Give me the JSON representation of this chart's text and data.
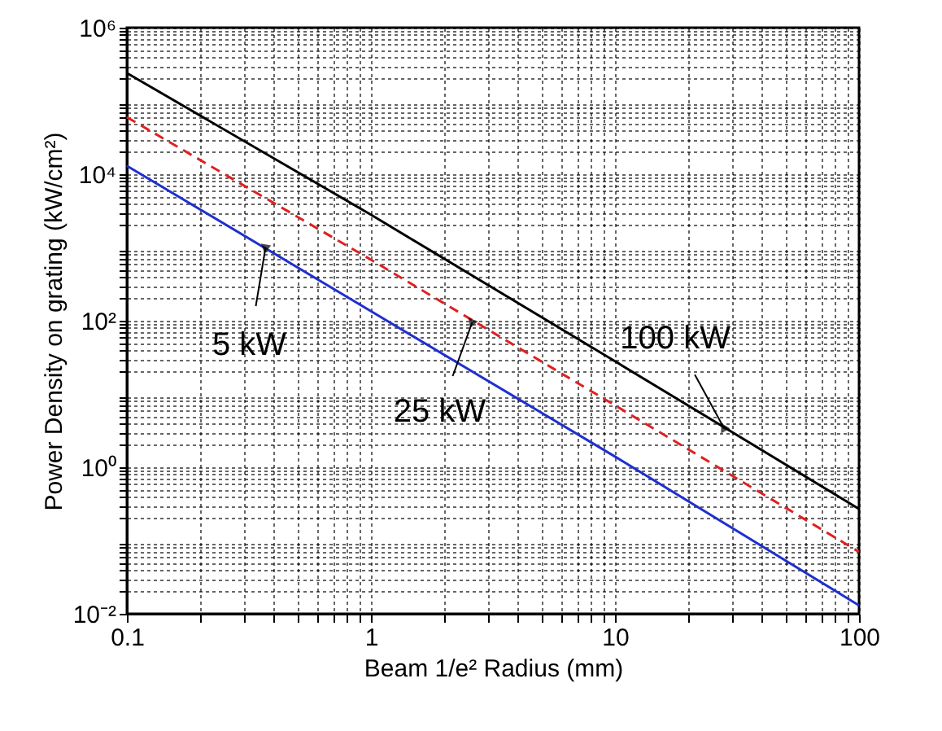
{
  "chart_data": {
    "type": "line",
    "xlabel": "Beam 1/e² Radius (mm)",
    "ylabel": "Power Density on grating (kW/cm²)",
    "log": "xy",
    "grid": true,
    "xlim": [
      0.1,
      100
    ],
    "xticks": [
      0.1,
      1,
      10,
      100
    ],
    "ylim": [
      0.01,
      1000000
    ],
    "yticks": [
      {
        "value": 0.01,
        "label": "10⁻²"
      },
      {
        "value": 1,
        "label": "10⁰"
      },
      {
        "value": 100,
        "label": "10²"
      },
      {
        "value": 10000,
        "label": "10⁴"
      },
      {
        "value": 1000000,
        "label": "10⁶"
      }
    ],
    "series": [
      {
        "color": "#000000",
        "line_style": "solid",
        "x": [
          0.1,
          1,
          10,
          100
        ],
        "values": [
          240000,
          2800,
          28,
          0.27
        ]
      },
      {
        "color": "#e02020",
        "line_style": "dashed",
        "x": [
          0.1,
          1,
          10,
          100
        ],
        "values": [
          60000,
          680,
          7,
          0.07
        ]
      },
      {
        "color": "#1f2fd0",
        "line_style": "solid",
        "x": [
          0.1,
          1,
          10,
          100
        ],
        "values": [
          13000,
          135,
          1.4,
          0.013
        ]
      }
    ],
    "annotations": [
      {
        "text": "100 kW",
        "x": 28,
        "y": 3.4
      },
      {
        "text": "25 kW",
        "x": 2.6,
        "y": 95
      },
      {
        "text": "5 kW",
        "x": 0.37,
        "y": 1000
      }
    ]
  }
}
